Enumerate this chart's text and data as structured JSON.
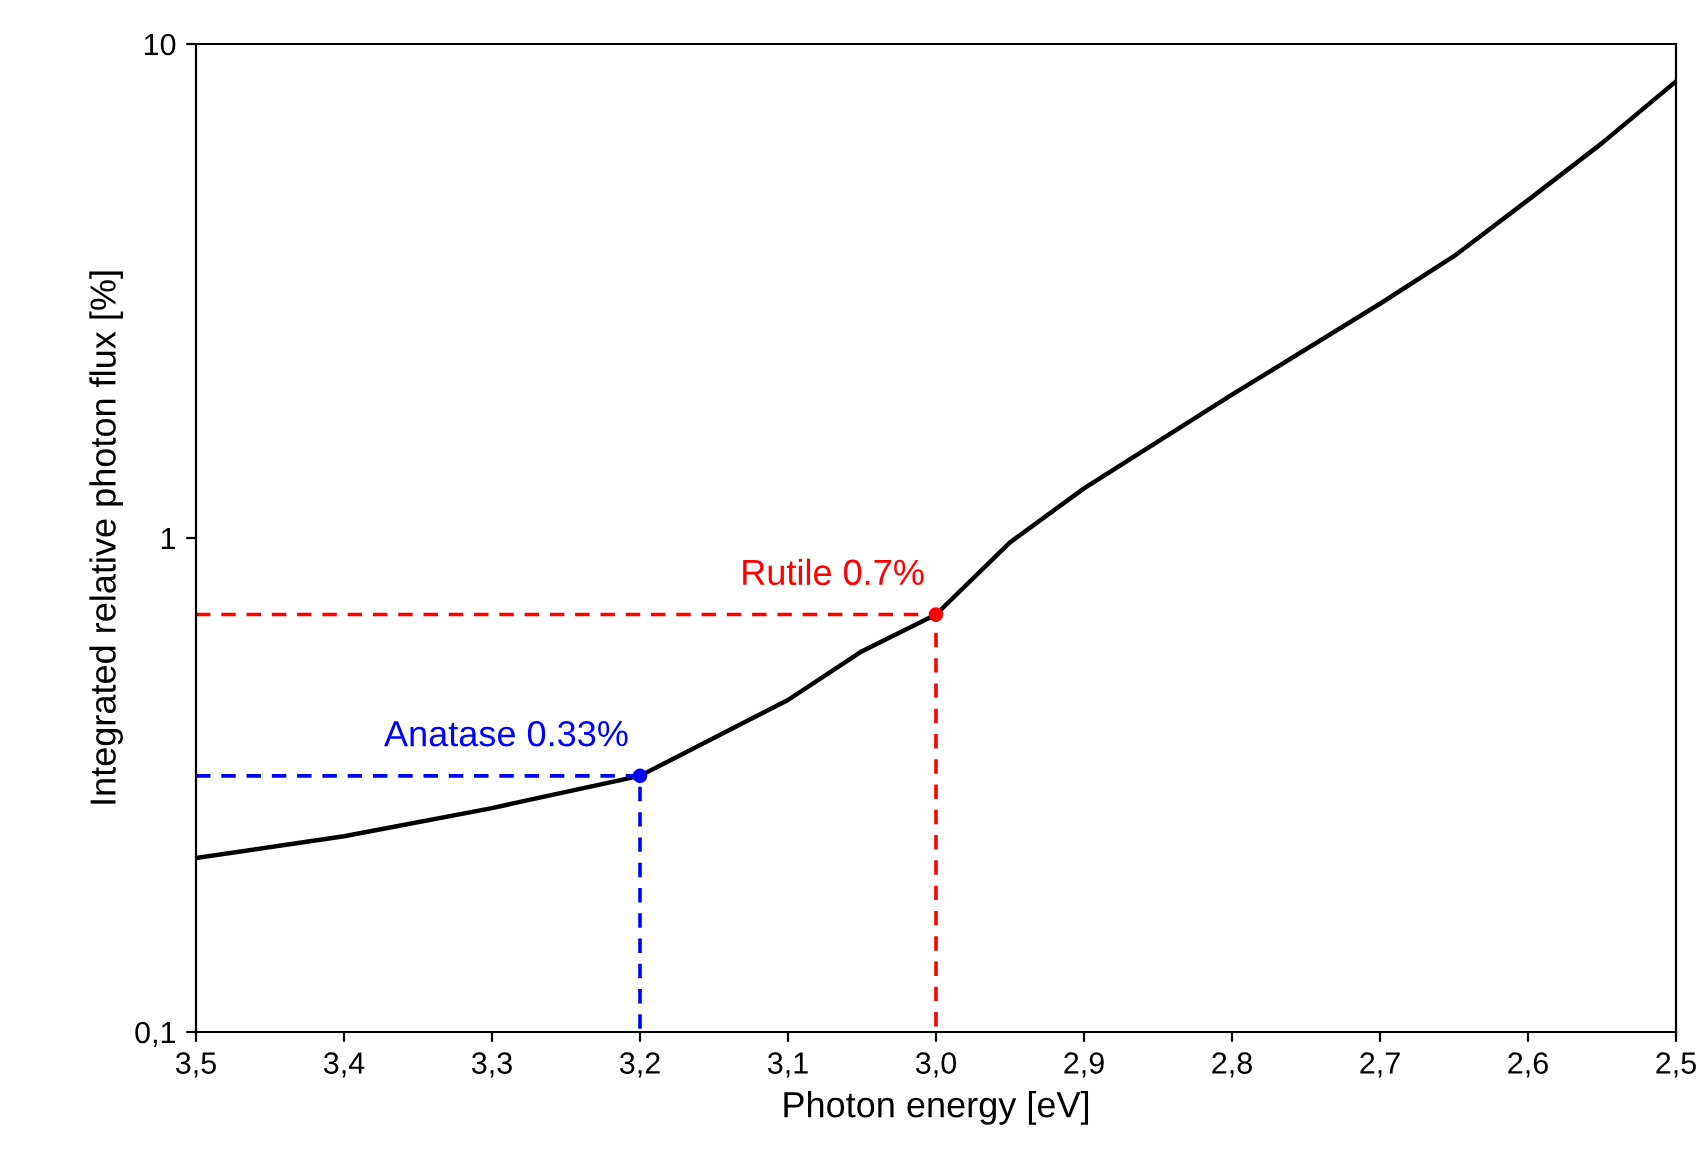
{
  "chart_data": {
    "type": "line",
    "xlabel": "Photon energy [eV]",
    "ylabel": "Integrated relative photon flux [%]",
    "log": "y",
    "xlim": [
      3.5,
      2.5
    ],
    "ylim": [
      0.1,
      10
    ],
    "xticks": [
      {
        "value": 3.5,
        "label": "3,5"
      },
      {
        "value": 3.4,
        "label": "3,4"
      },
      {
        "value": 3.3,
        "label": "3,3"
      },
      {
        "value": 3.2,
        "label": "3,2"
      },
      {
        "value": 3.1,
        "label": "3,1"
      },
      {
        "value": 3.0,
        "label": "3,0"
      },
      {
        "value": 2.9,
        "label": "2,9"
      },
      {
        "value": 2.8,
        "label": "2,8"
      },
      {
        "value": 2.7,
        "label": "2,7"
      },
      {
        "value": 2.6,
        "label": "2,6"
      },
      {
        "value": 2.5,
        "label": "2,5"
      }
    ],
    "yticks": [
      {
        "value": 0.1,
        "label": "0,1"
      },
      1,
      10
    ],
    "series": [
      {
        "color": "#000000",
        "line_style": "solid",
        "marker": "none",
        "x": [
          3.5,
          3.4,
          3.3,
          3.2,
          3.1,
          3.05,
          3.0,
          2.95,
          2.9,
          2.8,
          2.7,
          2.65,
          2.6,
          2.55,
          2.5
        ],
        "values": [
          0.225,
          0.249,
          0.284,
          0.33,
          0.47,
          0.59,
          0.7,
          0.98,
          1.26,
          1.95,
          2.98,
          3.72,
          4.83,
          6.3,
          8.4
        ]
      },
      {
        "color": "#0000ff",
        "line_style": "dashed",
        "marker": "none",
        "x": [
          3.5,
          3.2,
          3.2
        ],
        "values": [
          0.33,
          0.33,
          0.1
        ]
      },
      {
        "color": "#ff0000",
        "line_style": "dashed",
        "marker": "none",
        "x": [
          3.5,
          3.0,
          3.0
        ],
        "values": [
          0.7,
          0.7,
          0.1
        ]
      },
      {
        "type": "scatter",
        "color": "#0000ff",
        "marker": "circle",
        "x": [
          3.2
        ],
        "values": [
          0.33
        ]
      },
      {
        "type": "scatter",
        "color": "#ff0000",
        "marker": "circle",
        "x": [
          3.0
        ],
        "values": [
          0.7
        ]
      }
    ],
    "annotations": [
      {
        "text": "Anatase 0.33%",
        "x": 3.2,
        "y": 0.33
      },
      {
        "text": "Rutile 0.7%",
        "x": 3.0,
        "y": 0.7
      }
    ]
  }
}
